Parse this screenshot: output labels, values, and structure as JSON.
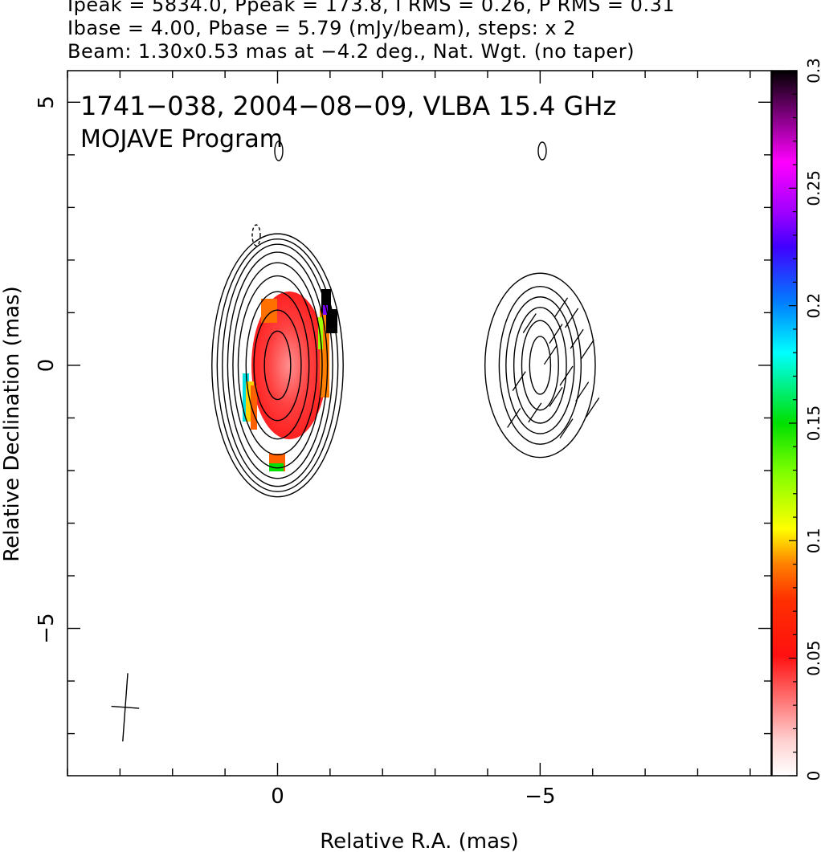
{
  "header": {
    "line1": "Ipeak = 5834.0, Ppeak = 173.8, I RMS = 0.26, P RMS = 0.31",
    "line2": "Ibase = 4.00, Pbase = 5.79 (mJy/beam), steps: x 2",
    "line3": "Beam: 1.30x0.53 mas at −4.2 deg., Nat. Wgt. (no taper)"
  },
  "chart_data": {
    "type": "heatmap",
    "title": "1741−038, 2004−08−09, VLBA 15.4 GHz",
    "subtitle": "MOJAVE Program",
    "xlabel": "Relative R.A. (mas)",
    "ylabel": "Relative Declination (mas)",
    "xlim": [
      4,
      -9.4
    ],
    "ylim": [
      -7.8,
      5.6
    ],
    "x_ticks": [
      {
        "value": 0,
        "label": "0"
      },
      {
        "value": -5,
        "label": "−5"
      }
    ],
    "y_ticks": [
      {
        "value": 5,
        "label": "5"
      },
      {
        "value": 0,
        "label": "0"
      },
      {
        "value": -5,
        "label": "−5"
      }
    ],
    "colorbar": {
      "range": [
        0,
        0.3
      ],
      "ticks": [
        {
          "value": 0,
          "label": "0"
        },
        {
          "value": 0.05,
          "label": "0.05"
        },
        {
          "value": 0.1,
          "label": "0.1"
        },
        {
          "value": 0.15,
          "label": "0.15"
        },
        {
          "value": 0.2,
          "label": "0.2"
        },
        {
          "value": 0.25,
          "label": "0.25"
        },
        {
          "value": 0.3,
          "label": "0.3"
        }
      ]
    },
    "components": [
      {
        "x": 0,
        "y": 0,
        "contour_radii": [
          [
            0.25,
            0.65
          ],
          [
            0.45,
            1.05
          ],
          [
            0.6,
            1.4
          ],
          [
            0.75,
            1.7
          ],
          [
            0.85,
            1.95
          ],
          [
            0.95,
            2.15
          ],
          [
            1.05,
            2.3
          ],
          [
            1.15,
            2.4
          ],
          [
            1.25,
            2.5
          ]
        ]
      },
      {
        "x": -5,
        "y": 0,
        "contour_radii": [
          [
            0.2,
            0.55
          ],
          [
            0.35,
            0.85
          ],
          [
            0.5,
            1.1
          ],
          [
            0.65,
            1.3
          ],
          [
            0.78,
            1.5
          ],
          [
            1.05,
            1.75
          ]
        ]
      }
    ],
    "beam": {
      "x": 2.9,
      "y": -6.5,
      "major_mas": 1.3,
      "minor_mas": 0.53,
      "pa_deg": -4.2
    }
  }
}
